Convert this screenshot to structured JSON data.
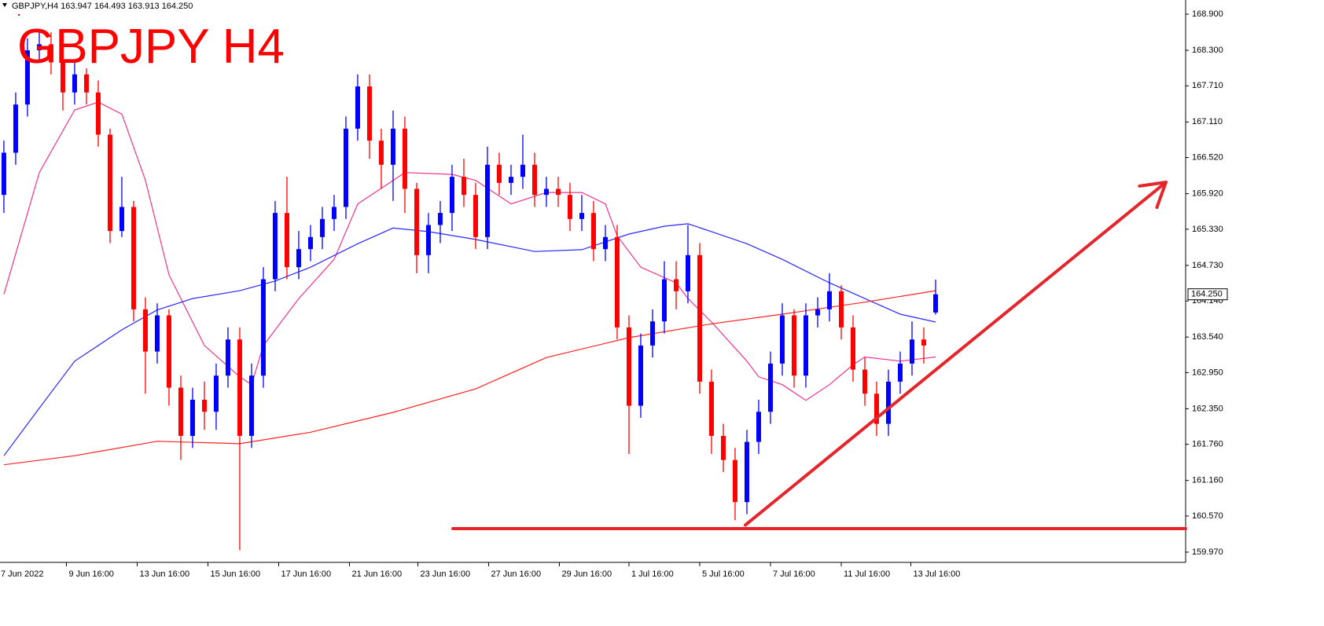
{
  "chart_data": {
    "type": "candlestick",
    "header": "GBPJPY,H4  163.947 164.493 163.913 164.250",
    "title": "GBPJPY H4",
    "up_color": "#0000ff",
    "down_color": "#ff0000",
    "open": [
      165.9,
      166.6,
      167.4,
      168.3,
      168.4,
      168.1,
      167.6,
      167.9,
      167.6,
      166.9,
      165.3,
      165.7,
      164.0,
      163.3,
      163.9,
      162.7,
      161.9,
      162.5,
      162.3,
      162.9,
      163.5,
      161.9,
      162.9,
      164.5,
      165.6,
      164.7,
      165.0,
      165.2,
      165.5,
      165.7,
      167.0,
      167.7,
      166.8,
      166.4,
      167.0,
      166.0,
      164.9,
      165.4,
      165.6,
      166.2,
      165.9,
      165.2,
      166.4,
      166.1,
      166.2,
      166.4,
      165.9,
      166.0,
      165.9,
      165.5,
      165.6,
      165.0,
      165.2,
      163.7,
      162.4,
      163.4,
      163.8,
      164.5,
      164.3,
      164.9,
      162.8,
      161.9,
      161.5,
      160.8,
      161.8,
      162.3,
      163.1,
      163.9,
      162.9,
      163.9,
      164.0,
      164.3,
      163.7,
      163.0,
      162.6,
      162.1,
      162.8,
      163.1,
      163.5,
      163.947
    ],
    "high": [
      166.8,
      167.6,
      168.5,
      168.6,
      168.6,
      168.3,
      168.1,
      168.0,
      167.8,
      167.0,
      166.2,
      165.8,
      164.2,
      164.1,
      164.0,
      162.9,
      162.7,
      162.8,
      163.1,
      163.7,
      163.7,
      163.1,
      164.7,
      165.8,
      166.2,
      165.3,
      165.4,
      165.7,
      165.9,
      167.2,
      167.9,
      167.9,
      167.0,
      167.3,
      167.2,
      166.1,
      165.6,
      165.8,
      166.4,
      166.5,
      166.1,
      166.7,
      166.6,
      166.4,
      166.9,
      166.6,
      166.2,
      166.2,
      166.1,
      165.9,
      165.8,
      165.4,
      165.4,
      163.9,
      163.6,
      164.0,
      164.8,
      164.8,
      165.4,
      165.1,
      163.0,
      162.1,
      161.7,
      162.0,
      162.5,
      163.3,
      164.1,
      164.0,
      164.1,
      164.2,
      164.6,
      164.4,
      163.9,
      163.2,
      162.8,
      163.0,
      163.3,
      163.8,
      163.7,
      164.493
    ],
    "low": [
      165.6,
      166.4,
      167.2,
      168.1,
      167.9,
      167.3,
      167.4,
      167.4,
      166.7,
      165.1,
      165.2,
      163.8,
      162.6,
      163.1,
      162.4,
      161.5,
      161.7,
      162.0,
      162.0,
      162.7,
      160.0,
      161.7,
      162.7,
      164.3,
      164.5,
      164.5,
      164.8,
      165.0,
      165.3,
      165.5,
      166.8,
      166.5,
      166.0,
      165.8,
      165.6,
      164.6,
      164.6,
      165.1,
      165.3,
      165.7,
      165.0,
      165.0,
      165.9,
      165.9,
      166.0,
      165.7,
      165.7,
      165.7,
      165.3,
      165.3,
      164.8,
      164.8,
      163.5,
      161.6,
      162.2,
      163.2,
      163.6,
      164.0,
      164.1,
      162.6,
      161.6,
      161.3,
      160.5,
      160.6,
      161.6,
      162.1,
      162.9,
      162.7,
      162.7,
      163.7,
      163.8,
      163.5,
      162.8,
      162.4,
      161.9,
      161.9,
      162.6,
      162.9,
      163.1,
      163.913
    ],
    "close": [
      166.6,
      167.4,
      168.3,
      168.4,
      168.1,
      167.6,
      167.9,
      167.6,
      166.9,
      165.3,
      165.7,
      164.0,
      163.3,
      163.9,
      162.7,
      161.9,
      162.5,
      162.3,
      162.9,
      163.5,
      161.9,
      162.9,
      164.5,
      165.6,
      164.7,
      165.0,
      165.2,
      165.5,
      165.7,
      167.0,
      167.7,
      166.8,
      166.4,
      167.0,
      166.0,
      164.9,
      165.4,
      165.6,
      166.2,
      165.9,
      165.2,
      166.4,
      166.1,
      166.2,
      166.4,
      165.9,
      166.0,
      165.9,
      165.5,
      165.6,
      165.0,
      165.2,
      163.7,
      162.4,
      163.4,
      163.8,
      164.5,
      164.3,
      164.9,
      162.8,
      161.9,
      161.5,
      160.8,
      161.8,
      162.3,
      163.1,
      163.9,
      162.9,
      163.9,
      164.0,
      164.3,
      163.7,
      163.0,
      162.6,
      162.1,
      162.8,
      163.1,
      163.5,
      163.4,
      164.25
    ],
    "series": [
      {
        "color": "#f0328c",
        "x": [
          0,
          3,
          6,
          8,
          10,
          12,
          14,
          17,
          20,
          21,
          22,
          25,
          28,
          30,
          33,
          34,
          38,
          40,
          43,
          46,
          49,
          51,
          52,
          54,
          57,
          58,
          60,
          63,
          64,
          66,
          68,
          70,
          72,
          73,
          76,
          79
        ],
        "values": [
          164.25,
          166.27,
          167.31,
          167.44,
          167.24,
          166.14,
          164.57,
          163.4,
          162.88,
          162.75,
          163.4,
          164.18,
          164.83,
          165.75,
          166.14,
          166.27,
          166.24,
          166.14,
          165.75,
          165.94,
          165.94,
          165.75,
          165.22,
          164.7,
          164.44,
          164.18,
          163.79,
          163.14,
          162.88,
          162.75,
          162.49,
          162.75,
          163.08,
          163.21,
          163.14,
          163.21
        ]
      },
      {
        "color": "#2828ff",
        "x": [
          0,
          3,
          6,
          10,
          13,
          16,
          20,
          23,
          26,
          30,
          33,
          36,
          40,
          45,
          49,
          53,
          56,
          58,
          60,
          63,
          66,
          70,
          73,
          76,
          79
        ],
        "values": [
          161.57,
          162.36,
          163.14,
          163.66,
          163.99,
          164.18,
          164.31,
          164.47,
          164.7,
          165.09,
          165.35,
          165.29,
          165.16,
          164.96,
          164.99,
          165.25,
          165.38,
          165.42,
          165.29,
          165.09,
          164.83,
          164.44,
          164.18,
          163.92,
          163.79
        ]
      },
      {
        "color": "#ff2020",
        "x": [
          0,
          6,
          13,
          20,
          26,
          33,
          40,
          46,
          53,
          60,
          66,
          73,
          79
        ],
        "values": [
          161.42,
          161.57,
          161.81,
          161.77,
          161.96,
          162.29,
          162.68,
          163.2,
          163.53,
          163.76,
          163.92,
          164.12,
          164.31
        ]
      }
    ],
    "last_price": {
      "value": 164.25,
      "label": "164.250"
    },
    "annotations": {
      "color": "#e4262c",
      "support": {
        "x": [
          38.07,
          100.2
        ],
        "y": [
          160.36,
          160.36
        ]
      },
      "arrow": {
        "x": [
          62.87,
          98.53
        ],
        "y": [
          160.42,
          166.11
        ]
      }
    },
    "xlim": [
      -0.33,
      100.2
    ],
    "ylim": [
      159.8,
      169.135
    ],
    "yticks": [
      {
        "value": 168.9,
        "label": "168.900"
      },
      {
        "value": 168.3,
        "label": "168.300"
      },
      {
        "value": 167.71,
        "label": "167.710"
      },
      {
        "value": 167.11,
        "label": "167.110"
      },
      {
        "value": 166.52,
        "label": "166.520"
      },
      {
        "value": 165.92,
        "label": "165.920"
      },
      {
        "value": 165.33,
        "label": "165.330"
      },
      {
        "value": 164.73,
        "label": "164.730"
      },
      {
        "value": 164.14,
        "label": "164.140"
      },
      {
        "value": 163.54,
        "label": "163.540"
      },
      {
        "value": 162.95,
        "label": "162.950"
      },
      {
        "value": 162.35,
        "label": "162.350"
      },
      {
        "value": 161.76,
        "label": "161.760"
      },
      {
        "value": 161.16,
        "label": "161.160"
      },
      {
        "value": 160.57,
        "label": "160.570"
      },
      {
        "value": 159.97,
        "label": "159.970"
      }
    ],
    "xticks": [
      {
        "value": -0.5,
        "label": "7 Jun 2022"
      },
      {
        "value": 5.3,
        "label": "9 Jun 16:00"
      },
      {
        "value": 11.3,
        "label": "13 Jun 16:00"
      },
      {
        "value": 17.3,
        "label": "15 Jun 16:00"
      },
      {
        "value": 23.3,
        "label": "17 Jun 16:00"
      },
      {
        "value": 29.3,
        "label": "21 Jun 16:00"
      },
      {
        "value": 35.1,
        "label": "23 Jun 16:00"
      },
      {
        "value": 41.1,
        "label": "27 Jun 16:00"
      },
      {
        "value": 47.1,
        "label": "29 Jun 16:00"
      },
      {
        "value": 53.0,
        "label": "1 Jul 16:00"
      },
      {
        "value": 59.0,
        "label": "5 Jul 16:00"
      },
      {
        "value": 65.0,
        "label": "7 Jul 16:00"
      },
      {
        "value": 71.0,
        "label": "11 Jul 16:00"
      },
      {
        "value": 76.9,
        "label": "13 Jul 16:00"
      }
    ]
  }
}
